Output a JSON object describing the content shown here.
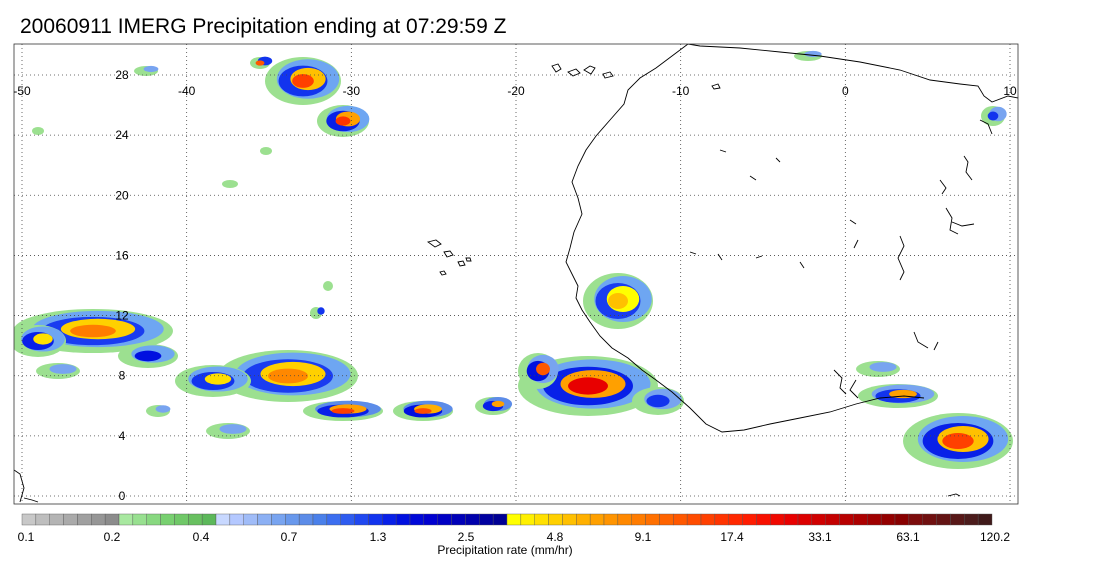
{
  "title": "20060911 IMERG Precipitation ending at 07:29:59 Z",
  "map": {
    "lon_range": [
      -50,
      10
    ],
    "lat_range": [
      -1,
      30.5
    ],
    "lon_ticks": [
      -50,
      -40,
      -30,
      -20,
      -10,
      0,
      10
    ],
    "lon_tick_labels": [
      "-50",
      "-40",
      "-30",
      "-20",
      "-10",
      "0",
      "10"
    ],
    "lat_ticks": [
      0,
      4,
      8,
      12,
      16,
      20,
      24,
      28
    ],
    "lat_tick_labels": [
      "0",
      "4",
      "8",
      "12",
      "16",
      "20",
      "24",
      "28"
    ],
    "gridlines": "dotted",
    "coastline_color": "#000000"
  },
  "colorbar": {
    "label": "Precipitation rate (mm/hr)",
    "tick_labels": [
      "0.1",
      "0.2",
      "0.4",
      "0.7",
      "1.3",
      "2.5",
      "4.8",
      "9.1",
      "17.4",
      "33.1",
      "63.1",
      "120.2"
    ],
    "colors": [
      "#c8c8c8",
      "#bebebe",
      "#b4b4b4",
      "#aaaaaa",
      "#a0a0a0",
      "#969696",
      "#8c8c8c",
      "#a8e8a0",
      "#98e090",
      "#88d880",
      "#78d070",
      "#70c868",
      "#68c060",
      "#5cb85a",
      "#c8d8ff",
      "#b4c8ff",
      "#a0bcf8",
      "#8cb0f4",
      "#78a4f0",
      "#6898ec",
      "#5c8ce8",
      "#4a80ea",
      "#3c6ef0",
      "#2e5cf0",
      "#2048f0",
      "#1234ee",
      "#0820e8",
      "#0010e0",
      "#0008d8",
      "#0000d0",
      "#0000c4",
      "#0000b8",
      "#0000ac",
      "#0000a0",
      "#000094",
      "#ffff00",
      "#fff000",
      "#ffe000",
      "#ffd000",
      "#ffc000",
      "#ffb000",
      "#ffa000",
      "#ff9400",
      "#ff8800",
      "#ff7c00",
      "#ff7000",
      "#ff6400",
      "#ff5800",
      "#ff4c00",
      "#ff4000",
      "#ff3400",
      "#ff2800",
      "#ff1c00",
      "#f81000",
      "#f00800",
      "#e80000",
      "#dc0000",
      "#d00000",
      "#c40000",
      "#b80000",
      "#ac0000",
      "#a00000",
      "#940000",
      "#880000",
      "#7c0c0c",
      "#701010",
      "#641414",
      "#581818",
      "#4c1c1c",
      "#401a1a"
    ]
  }
}
